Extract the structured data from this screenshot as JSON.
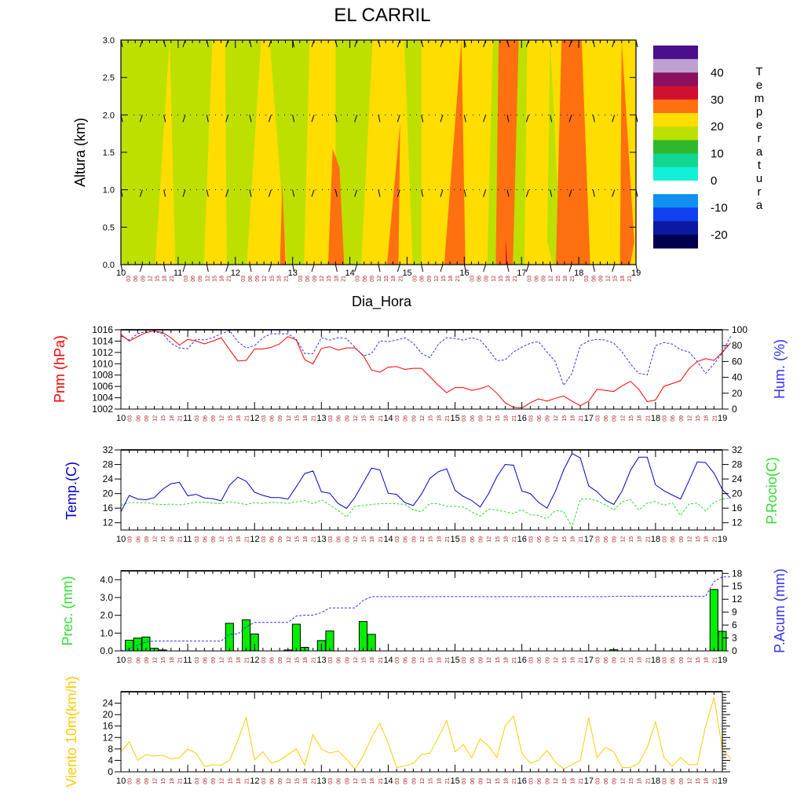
{
  "title": "EL CARRIL",
  "day_labels": [
    "10",
    "11",
    "12",
    "13",
    "14",
    "15",
    "16",
    "17",
    "18",
    "19"
  ],
  "hour_labels": [
    "03",
    "06",
    "09",
    "12",
    "15",
    "18",
    "21"
  ],
  "colors": {
    "pnm": "#ff0000",
    "hum": "#3333ff",
    "temp": "#0000cc",
    "dew": "#33dd33",
    "prec_bar": "#00ee00",
    "prec_acum": "#3333ff",
    "wind": "#ffcc00",
    "hour_label": "#aa2222"
  },
  "chart_data": [
    {
      "type": "heatmap",
      "id": "section",
      "xlabel": "Dia_Hora",
      "ylabel": "Altura (km)",
      "y_ticks": [
        "0.0",
        "0.5",
        "1.0",
        "1.5",
        "2.0",
        "2.5",
        "3.0"
      ],
      "ylim": [
        0,
        3
      ],
      "colorbar_title": "Temperatura",
      "colorbar_ticks": [
        "40",
        "30",
        "20",
        "10",
        "0",
        "-10",
        "-20"
      ],
      "colorbar_levels": [
        {
          "color": "#4b0f8b"
        },
        {
          "color": "#c0a0d0"
        },
        {
          "color": "#8b1060"
        },
        {
          "color": "#d01030"
        },
        {
          "color": "#ff7010"
        },
        {
          "color": "#ffdd00"
        },
        {
          "color": "#bde000"
        },
        {
          "color": "#2eb82e"
        },
        {
          "color": "#10d890"
        },
        {
          "color": "#10f0d8"
        },
        {
          "color": "#ffffff"
        },
        {
          "color": "#1090f0"
        },
        {
          "color": "#1040f0"
        },
        {
          "color": "#0a1aa0"
        },
        {
          "color": "#000050"
        }
      ],
      "background_color": "#bde000",
      "zones": [
        {
          "color": "#ffdd00",
          "poly": [
            [
              0.6,
              0
            ],
            [
              0.85,
              3
            ],
            [
              0.95,
              0
            ]
          ]
        },
        {
          "color": "#ffdd00",
          "poly": [
            [
              1.45,
              0
            ],
            [
              1.6,
              3
            ],
            [
              1.82,
              3
            ],
            [
              1.85,
              0
            ]
          ]
        },
        {
          "color": "#ffdd00",
          "poly": [
            [
              2.2,
              0
            ],
            [
              2.45,
              3
            ],
            [
              2.6,
              3
            ],
            [
              2.9,
              0
            ]
          ]
        },
        {
          "color": "#ff7010",
          "poly": [
            [
              2.78,
              0
            ],
            [
              2.82,
              1.1
            ],
            [
              2.88,
              0
            ]
          ]
        },
        {
          "color": "#ffdd00",
          "poly": [
            [
              3.2,
              0
            ],
            [
              3.3,
              3
            ],
            [
              3.75,
              3
            ],
            [
              3.75,
              0
            ]
          ]
        },
        {
          "color": "#ff7010",
          "poly": [
            [
              3.62,
              0
            ],
            [
              3.7,
              1.55
            ],
            [
              3.82,
              1.3
            ],
            [
              3.9,
              0
            ]
          ]
        },
        {
          "color": "#ffdd00",
          "poly": [
            [
              4.2,
              0
            ],
            [
              4.4,
              3
            ],
            [
              4.95,
              3
            ],
            [
              5.1,
              0
            ]
          ]
        },
        {
          "color": "#ff7010",
          "poly": [
            [
              4.65,
              0
            ],
            [
              4.88,
              1.9
            ],
            [
              4.85,
              0
            ]
          ]
        },
        {
          "color": "#ffdd00",
          "poly": [
            [
              5.25,
              0
            ],
            [
              5.25,
              3
            ],
            [
              6.5,
              3
            ],
            [
              6.4,
              0
            ]
          ]
        },
        {
          "color": "#ff7010",
          "poly": [
            [
              5.65,
              0
            ],
            [
              5.95,
              3
            ],
            [
              6.02,
              0
            ]
          ]
        },
        {
          "color": "#ff7010",
          "poly": [
            [
              6.55,
              0
            ],
            [
              6.6,
              3
            ],
            [
              6.95,
              3
            ],
            [
              6.85,
              0
            ]
          ]
        },
        {
          "color": "#d01030",
          "poly": [
            [
              6.72,
              0
            ],
            [
              6.73,
              0.35
            ],
            [
              6.75,
              0
            ]
          ]
        },
        {
          "color": "#ffdd00",
          "poly": [
            [
              7.05,
              0
            ],
            [
              7.1,
              3
            ],
            [
              7.5,
              3
            ],
            [
              7.45,
              0.3
            ],
            [
              7.55,
              0
            ]
          ]
        },
        {
          "color": "#ffdd00",
          "poly": [
            [
              7.7,
              0
            ],
            [
              7.5,
              3
            ],
            [
              9,
              3
            ],
            [
              9,
              0
            ]
          ]
        },
        {
          "color": "#ff7010",
          "poly": [
            [
              7.6,
              0
            ],
            [
              7.7,
              3
            ],
            [
              8.05,
              3
            ],
            [
              8.2,
              0
            ]
          ]
        },
        {
          "color": "#ff7010",
          "poly": [
            [
              8.72,
              0
            ],
            [
              8.75,
              3
            ],
            [
              8.97,
              0.3
            ],
            [
              8.9,
              0
            ]
          ]
        }
      ],
      "wind_levels": [
        0,
        1.0,
        2.0,
        3.0
      ]
    },
    {
      "type": "line",
      "id": "pressure_humidity",
      "left_label": "Pnm (hPa)",
      "right_label": "Hum. (%)",
      "left_ticks": [
        "1016",
        "1014",
        "1012",
        "1010",
        "1008",
        "1006",
        "1004",
        "1002"
      ],
      "right_ticks": [
        "100",
        "80",
        "60",
        "40",
        "20",
        "0"
      ],
      "ylim_left": [
        1002,
        1016
      ],
      "ylim_right": [
        0,
        100
      ],
      "series": [
        {
          "name": "Pnm (hPa)",
          "axis": "left",
          "color_key": "pnm",
          "dash": false,
          "values": [
            1015.2,
            1014,
            1014.8,
            1015.5,
            1015.8,
            1015.5,
            1014.6,
            1013.3,
            1014.3,
            1014.0,
            1013.5,
            1014.0,
            1014.6,
            1012.5,
            1010.5,
            1010.6,
            1012.6,
            1012.6,
            1012.9,
            1013.5,
            1014.8,
            1014.2,
            1010.7,
            1010.0,
            1012.7,
            1013.0,
            1012.4,
            1012.8,
            1012.8,
            1011.5,
            1008.9,
            1008.5,
            1009.4,
            1009.5,
            1009.0,
            1009.2,
            1009.2,
            1007.7,
            1006.2,
            1004.9,
            1005.8,
            1005.8,
            1005.3,
            1005.6,
            1006.1,
            1004.8,
            1003.1,
            1002.3,
            1002.2,
            1003.1,
            1003.8,
            1003.4,
            1003.9,
            1004.3,
            1003.4,
            1002.6,
            1003.4,
            1005.5,
            1005.3,
            1005.1,
            1006.1,
            1006.9,
            1005.5,
            1003.3,
            1003.6,
            1006.0,
            1006.5,
            1007.0,
            1009.1,
            1010.4,
            1010.9,
            1010.6,
            1012.0,
            1013.7
          ]
        },
        {
          "name": "Hum. (%)",
          "axis": "right",
          "color_key": "hum",
          "dash": true,
          "values": [
            92,
            87,
            95,
            98,
            98,
            95,
            83,
            77,
            76,
            88,
            87,
            90,
            95,
            99,
            85,
            77,
            80,
            90,
            95,
            95,
            95,
            88,
            70,
            70,
            90,
            87,
            90,
            89,
            78,
            67,
            70,
            86,
            85,
            87,
            90,
            83,
            70,
            65,
            82,
            90,
            89,
            87,
            90,
            87,
            75,
            61,
            62,
            72,
            78,
            83,
            85,
            72,
            60,
            30,
            45,
            80,
            86,
            88,
            87,
            83,
            72,
            57,
            45,
            43,
            80,
            84,
            82,
            75,
            72,
            60,
            45,
            57,
            71,
            92
          ]
        },
        {
          "name": "Temp.(C)",
          "axis": "left",
          "color_key": "temp",
          "dash": false,
          "hidden": true,
          "values": []
        }
      ]
    },
    {
      "type": "line",
      "id": "temperature_dewpoint",
      "left_label": "Temp.(C)",
      "right_label": "P.Rocio(C)",
      "left_ticks": [
        "32",
        "28",
        "24",
        "20",
        "16",
        "12"
      ],
      "right_ticks": [
        "32",
        "28",
        "24",
        "20",
        "16",
        "12"
      ],
      "ylim_left": [
        10,
        32
      ],
      "ylim_right": [
        10,
        32
      ],
      "series": [
        {
          "name": "Temp.(C)",
          "axis": "left",
          "color_key": "temp",
          "dash": false,
          "values": [
            15.0,
            19.5,
            18.5,
            18.3,
            18.9,
            21.2,
            22.7,
            23.1,
            19.4,
            19.8,
            18.8,
            18.6,
            18.0,
            22.3,
            24.5,
            23.4,
            20.4,
            19.5,
            18.9,
            18.9,
            18.5,
            21.9,
            25.5,
            26.2,
            20.5,
            20.1,
            17.3,
            15.9,
            18.9,
            22.9,
            27.0,
            26.5,
            20.1,
            19.8,
            17.5,
            16.7,
            19.9,
            24.2,
            26.0,
            26.8,
            20.9,
            19.2,
            18.1,
            16.3,
            19.9,
            24.6,
            28.0,
            27.8,
            20.7,
            20.0,
            17.6,
            16.0,
            20.5,
            26.5,
            31.0,
            29.8,
            22.1,
            20.5,
            18.2,
            17.0,
            20.7,
            26.4,
            30.0,
            30.0,
            22.4,
            20.8,
            19.6,
            18.5,
            23.5,
            28.7,
            28.5,
            25.6,
            21.1,
            18.7
          ]
        },
        {
          "name": "P.Rocio(C)",
          "axis": "right",
          "color_key": "dew",
          "dash": true,
          "values": [
            16.8,
            17.5,
            17.5,
            17.5,
            17.1,
            17.0,
            17.1,
            16.9,
            17.2,
            17.6,
            17.6,
            17.4,
            17.2,
            17.8,
            17.4,
            17.0,
            17.5,
            17.3,
            17.6,
            17.5,
            17.3,
            17.7,
            18.1,
            17.2,
            18.3,
            16.9,
            15.4,
            13.5,
            16.5,
            16.7,
            17.0,
            17.2,
            17.3,
            17.2,
            17.0,
            15.5,
            15.0,
            17.3,
            17.2,
            16.5,
            16.5,
            16.3,
            15.0,
            13.8,
            15.7,
            15.5,
            15.0,
            14.5,
            15.6,
            14.2,
            14.0,
            13.1,
            15.3,
            15.1,
            10.8,
            18.5,
            18.6,
            18.0,
            16.9,
            15.5,
            17.7,
            18.4,
            15.5,
            17.4,
            17.8,
            16.8,
            17.4,
            14.0,
            17.1,
            17.4,
            15.2,
            17.6,
            18.5,
            18.8
          ]
        }
      ]
    },
    {
      "type": "bar",
      "id": "precipitation",
      "left_label": "Prec. (mm)",
      "right_label": "P.Acum (mm)",
      "left_ticks": [
        "4.0",
        "3.0",
        "2.0",
        "1.0",
        "0.0"
      ],
      "right_ticks": [
        "18",
        "15",
        "12",
        "9",
        "6",
        "3",
        "0"
      ],
      "ylim_left": [
        0,
        4.5
      ],
      "ylim_right": [
        0,
        18.6
      ],
      "bars": [
        {
          "i": 1,
          "value": 0.6
        },
        {
          "i": 2,
          "value": 0.72
        },
        {
          "i": 3,
          "value": 0.78
        },
        {
          "i": 4,
          "value": 0.15
        },
        {
          "i": 5,
          "value": 0.05
        },
        {
          "i": 13,
          "value": 1.55
        },
        {
          "i": 15,
          "value": 1.75
        },
        {
          "i": 16,
          "value": 0.95
        },
        {
          "i": 20,
          "value": 0.05
        },
        {
          "i": 21,
          "value": 1.5
        },
        {
          "i": 22,
          "value": 0.2
        },
        {
          "i": 24,
          "value": 0.58
        },
        {
          "i": 25,
          "value": 1.12
        },
        {
          "i": 29,
          "value": 1.65
        },
        {
          "i": 30,
          "value": 0.93
        },
        {
          "i": 59,
          "value": 0.07
        },
        {
          "i": 71,
          "value": 3.45
        },
        {
          "i": 72,
          "value": 1.1
        }
      ],
      "accum": [
        0,
        0.6,
        1.3,
        2.1,
        2.3,
        2.3,
        2.3,
        2.3,
        2.3,
        2.3,
        2.3,
        2.3,
        2.3,
        3.9,
        3.9,
        5.6,
        6.6,
        6.6,
        6.6,
        6.6,
        6.6,
        8.1,
        8.3,
        8.3,
        8.9,
        10.0,
        10.0,
        10.0,
        10.0,
        11.7,
        12.6,
        12.6,
        12.6,
        12.6,
        12.6,
        12.6,
        12.6,
        12.6,
        12.6,
        12.6,
        12.6,
        12.6,
        12.6,
        12.6,
        12.6,
        12.6,
        12.6,
        12.6,
        12.6,
        12.6,
        12.6,
        12.6,
        12.6,
        12.6,
        12.6,
        12.6,
        12.6,
        12.6,
        12.6,
        12.7,
        12.7,
        12.7,
        12.7,
        12.7,
        12.7,
        12.7,
        12.7,
        12.7,
        12.7,
        12.7,
        12.7,
        16.1,
        17.2,
        17.2
      ]
    },
    {
      "type": "line",
      "id": "wind",
      "left_label": "Viento 10m(km/h)",
      "left_ticks": [
        "24",
        "20",
        "16",
        "12",
        "8",
        "4",
        "0"
      ],
      "ylim_left": [
        0,
        28
      ],
      "series": [
        {
          "name": "Viento 10m(km/h)",
          "axis": "left",
          "color_key": "wind",
          "dash": false,
          "values": [
            7.0,
            10.5,
            4.0,
            6.0,
            5.5,
            5.8,
            4.5,
            5.0,
            8.0,
            6.5,
            1.8,
            2.5,
            2.3,
            4.0,
            11.0,
            19.0,
            4.2,
            7.0,
            3.0,
            4.0,
            6.0,
            8.0,
            2.3,
            13.0,
            8.0,
            6.5,
            7.3,
            4.5,
            1.0,
            5.5,
            12.0,
            17.0,
            10.0,
            1.5,
            2.0,
            3.0,
            6.0,
            6.5,
            12.0,
            18.0,
            7.0,
            9.5,
            5.0,
            11.5,
            9.0,
            5.0,
            16.0,
            19.5,
            6.5,
            3.0,
            4.0,
            7.5,
            3.5,
            1.0,
            2.5,
            4.0,
            19.0,
            5.0,
            8.5,
            7.0,
            1.5,
            1.5,
            3.0,
            8.5,
            17.5,
            5.0,
            2.0,
            5.0,
            2.5,
            2.5,
            16.0,
            26.0,
            8.0,
            4.5
          ]
        }
      ]
    }
  ]
}
